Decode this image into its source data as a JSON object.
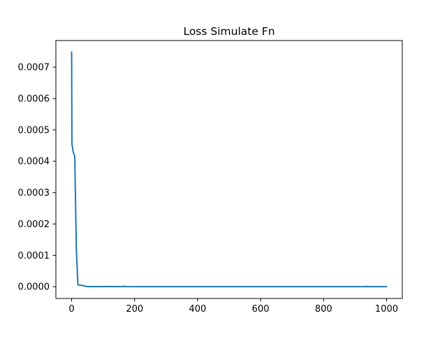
{
  "chart_data": {
    "type": "line",
    "title": "Loss Simulate Fn",
    "xlabel": "",
    "ylabel": "",
    "xlim": [
      -50,
      1050
    ],
    "ylim": [
      -3.75e-05,
      0.000785
    ],
    "x_ticks": [
      0,
      200,
      400,
      600,
      800,
      1000
    ],
    "x_tick_labels": [
      "0",
      "200",
      "400",
      "600",
      "800",
      "1000"
    ],
    "y_ticks": [
      0,
      0.0001,
      0.0002,
      0.0003,
      0.0004,
      0.0005,
      0.0006,
      0.0007
    ],
    "y_tick_labels": [
      "0.0000",
      "0.0001",
      "0.0002",
      "0.0003",
      "0.0004",
      "0.0005",
      "0.0006",
      "0.0007"
    ],
    "grid": false,
    "legend": "none",
    "series": [
      {
        "color": "#1f77b4",
        "x": [
          0,
          1,
          5,
          10,
          15,
          20,
          30,
          50,
          80,
          100,
          120,
          121,
          122,
          140,
          165,
          166,
          167,
          200,
          300,
          400,
          500,
          600,
          700,
          800,
          900,
          935,
          936,
          937,
          1000
        ],
        "y": [
          0.000748,
          0.000455,
          0.00043,
          0.000415,
          0.00012,
          6e-06,
          4.5e-06,
          5e-07,
          3e-07,
          3e-07,
          3e-07,
          1.6e-06,
          3e-07,
          3e-07,
          3e-07,
          2.2e-06,
          3e-07,
          2e-07,
          2e-07,
          1e-07,
          1e-07,
          1e-07,
          1e-07,
          1e-07,
          1e-07,
          1e-07,
          1.8e-06,
          1e-07,
          1e-07
        ]
      }
    ]
  }
}
